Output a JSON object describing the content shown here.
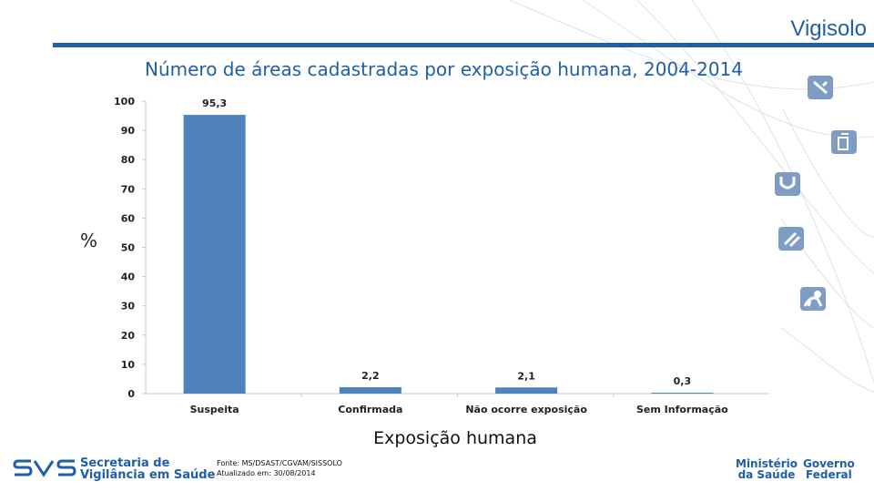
{
  "header": {
    "brand": "Vigisolo"
  },
  "footer": {
    "svs_line1": "Secretaria de",
    "svs_line2": "Vigilância em Saúde",
    "source_line1": "Fonte: MS/DSAST/CGVAM/SISSOLO",
    "source_line2": "Atualizado em: 30/08/2014",
    "ministry_line1": "Ministério",
    "ministry_line2": "da Saúde",
    "gov_line1": "Governo",
    "gov_line2": "Federal"
  },
  "colors": {
    "brand": "#1f5fa8",
    "bar": "#4f81bd"
  },
  "side_icons": [
    "syringe-icon",
    "bottle-icon",
    "stethoscope-icon",
    "test-tube-icon",
    "monkey-icon"
  ],
  "chart_data": {
    "type": "bar",
    "title": "Número de áreas cadastradas por exposição humana, 2004-2014",
    "xlabel": "Exposição humana",
    "ylabel": "%",
    "categories": [
      "Suspeita",
      "Confirmada",
      "Não ocorre exposição",
      "Sem Informação"
    ],
    "values": [
      95.3,
      2.2,
      2.1,
      0.3
    ],
    "value_labels": [
      "95,3",
      "2,2",
      "2,1",
      "0,3"
    ],
    "ylim": [
      0,
      100
    ],
    "yticks": [
      0,
      10,
      20,
      30,
      40,
      50,
      60,
      70,
      80,
      90,
      100
    ],
    "grid": false,
    "legend": "none"
  }
}
